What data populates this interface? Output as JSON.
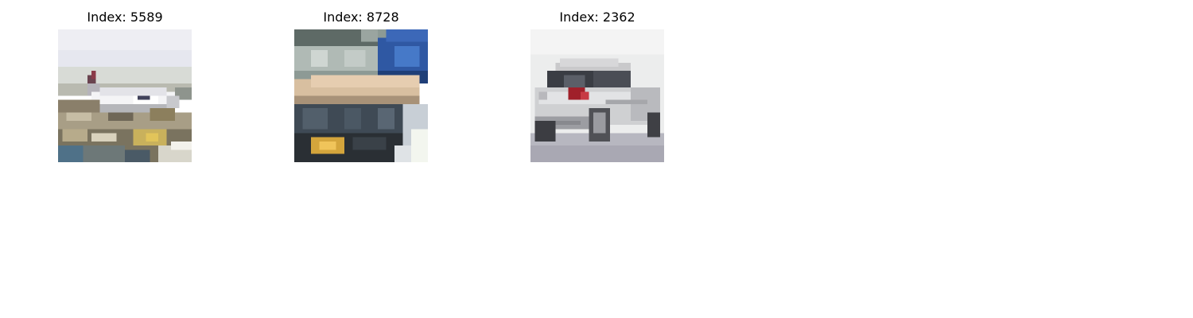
{
  "figure": {
    "tiles": [
      {
        "title": "Index: 5589",
        "content": "airplane"
      },
      {
        "title": "Index: 8728",
        "content": "truck"
      },
      {
        "title": "Index: 2362",
        "content": "car"
      }
    ]
  }
}
